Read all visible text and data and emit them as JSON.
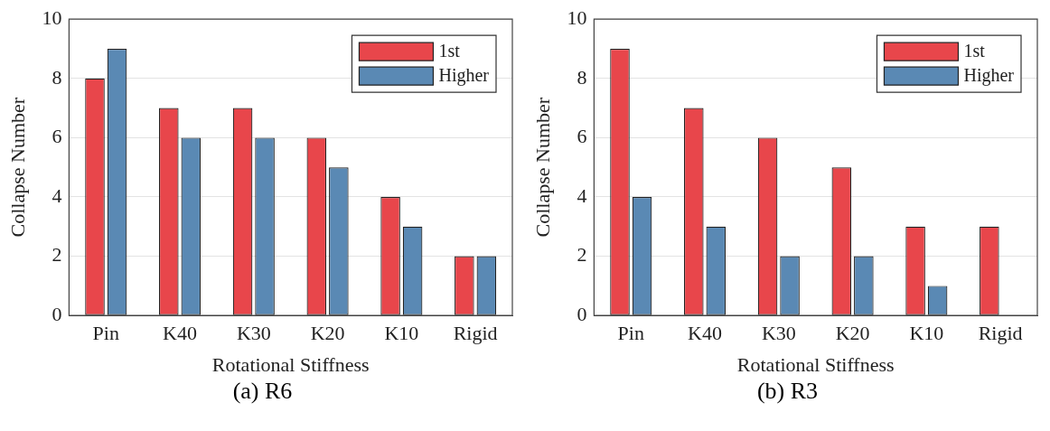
{
  "chart_data": [
    {
      "type": "bar",
      "xlabel": "Rotational Stiffness",
      "ylabel": "Collapse Number",
      "annotations": [
        "(a) R6"
      ],
      "categories": [
        "Pin",
        "K40",
        "K30",
        "K20",
        "K10",
        "Rigid"
      ],
      "series": [
        {
          "name": "1st",
          "color": "#e8464b",
          "values": [
            8,
            7,
            7,
            6,
            4,
            2
          ]
        },
        {
          "name": "Higher",
          "color": "#5a89b4",
          "values": [
            9,
            6,
            6,
            5,
            3,
            2
          ]
        }
      ],
      "ylim": [
        0,
        10
      ],
      "yticks": [
        0,
        2,
        4,
        6,
        8,
        10
      ],
      "grid": "y",
      "legend": "top right"
    },
    {
      "type": "bar",
      "xlabel": "Rotational Stiffness",
      "ylabel": "Collapse Number",
      "annotations": [
        "(b) R3"
      ],
      "categories": [
        "Pin",
        "K40",
        "K30",
        "K20",
        "K10",
        "Rigid"
      ],
      "series": [
        {
          "name": "1st",
          "color": "#e8464b",
          "values": [
            9,
            7,
            6,
            5,
            3,
            3
          ]
        },
        {
          "name": "Higher",
          "color": "#5a89b4",
          "values": [
            4,
            3,
            2,
            2,
            1,
            0
          ]
        }
      ],
      "ylim": [
        0,
        10
      ],
      "yticks": [
        0,
        2,
        4,
        6,
        8,
        10
      ],
      "grid": "y",
      "legend": "top right"
    }
  ]
}
